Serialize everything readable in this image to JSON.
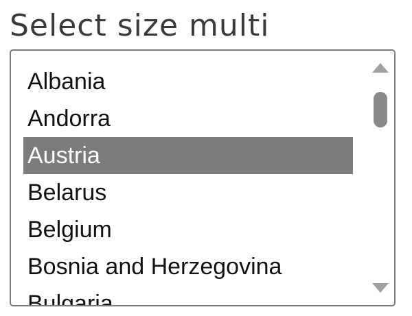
{
  "label": "Select size multi",
  "select": {
    "options": [
      {
        "label": "Albania",
        "selected": false
      },
      {
        "label": "Andorra",
        "selected": false
      },
      {
        "label": "Austria",
        "selected": true
      },
      {
        "label": "Belarus",
        "selected": false
      },
      {
        "label": "Belgium",
        "selected": false
      },
      {
        "label": "Bosnia and Herzegovina",
        "selected": false
      },
      {
        "label": "Bulgaria",
        "selected": false
      }
    ]
  },
  "scrollbar": {
    "up_icon": "arrow-up-icon",
    "down_icon": "arrow-down-icon"
  },
  "colors": {
    "selected_background": "#7c7c7c",
    "selected_text": "#ffffff",
    "border": "#7a7a7a"
  }
}
